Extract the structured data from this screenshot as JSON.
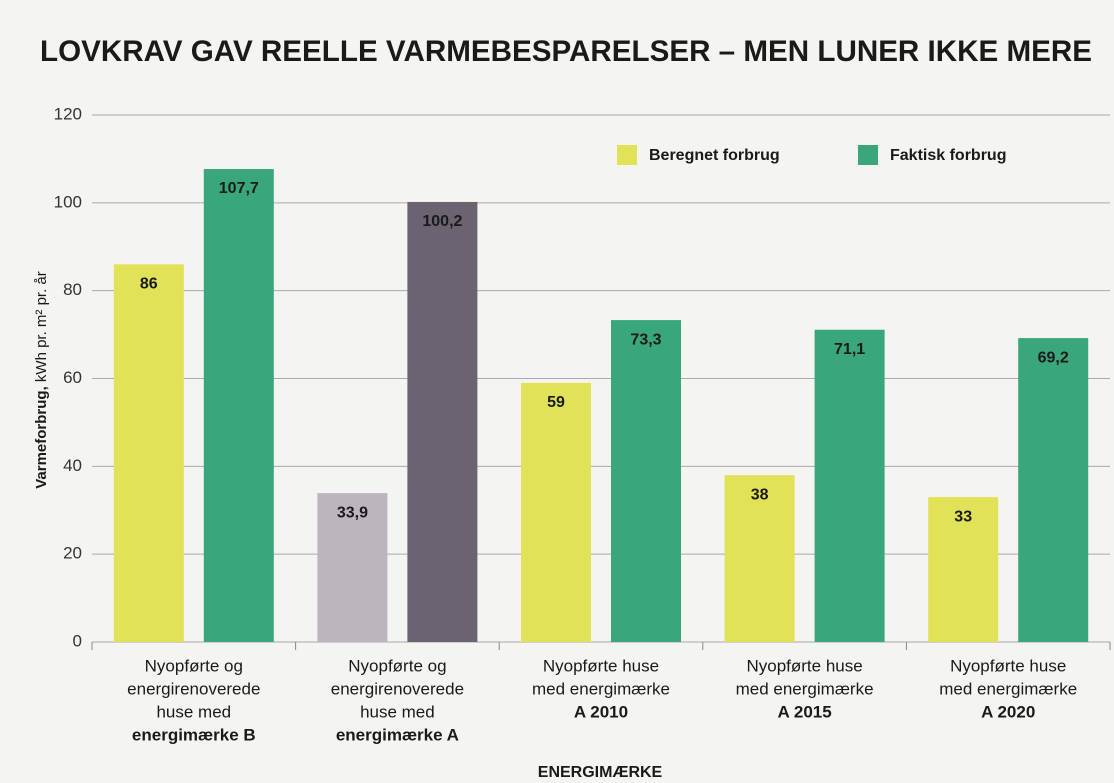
{
  "chart_data": {
    "type": "bar",
    "title": "LOVKRAV GAV REELLE VARMEBESPARELSER – MEN LUNER IKKE MERE",
    "ylabel": [
      "Varmeforbrug,",
      "kWh pr. m² pr. år"
    ],
    "xlabel": "ENERGIMÆRKE",
    "categories": [
      [
        "Nyopførte og",
        "energirenoverede",
        "huse med",
        "energimærke B"
      ],
      [
        "Nyopførte og",
        "energirenoverede",
        "huse med",
        "energimærke A"
      ],
      [
        "Nyopførte huse",
        "med energimærke",
        "A 2010"
      ],
      [
        "Nyopførte huse",
        "med energimærke",
        "A 2015"
      ],
      [
        "Nyopførte huse",
        "med energimærke",
        "A 2020"
      ]
    ],
    "series": [
      {
        "name": "Beregnet forbrug",
        "color": "#e2e259",
        "colors": [
          "#e2e259",
          "#bdb5bd",
          "#e2e259",
          "#e2e259",
          "#e2e259"
        ],
        "values": [
          86,
          33.9,
          59,
          38,
          33
        ],
        "value_labels": [
          "86",
          "33,9",
          "59",
          "38",
          "33"
        ]
      },
      {
        "name": "Faktisk forbrug",
        "color": "#3aa67c",
        "colors": [
          "#3aa67c",
          "#6b6370",
          "#3aa67c",
          "#3aa67c",
          "#3aa67c"
        ],
        "values": [
          107.7,
          100.2,
          73.3,
          71.1,
          69.2
        ],
        "value_labels": [
          "107,7",
          "100,2",
          "73,3",
          "71,1",
          "69,2"
        ]
      }
    ],
    "ylim": [
      0,
      120
    ],
    "yticks": [
      0,
      20,
      40,
      60,
      80,
      100,
      120
    ],
    "grid": true,
    "legend": "top-right"
  }
}
